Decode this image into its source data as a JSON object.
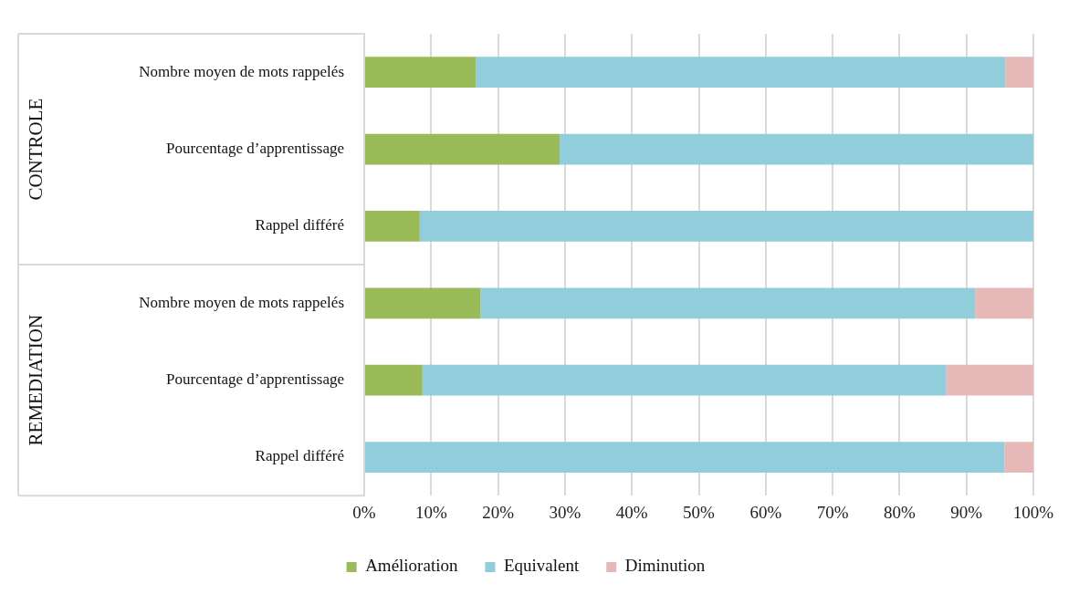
{
  "chart_data": {
    "type": "bar",
    "orientation": "horizontal",
    "stacked": true,
    "categories": [
      "Nombre moyen de mots rappelés",
      "Pourcentage d’apprentissage",
      "Rappel différé",
      "Nombre moyen de mots rappelés",
      "Pourcentage d’apprentissage",
      "Rappel différé"
    ],
    "series": [
      {
        "name": "Amélioration",
        "color": "#9bbb59",
        "values": [
          16.7,
          29.2,
          8.3,
          17.4,
          8.7,
          0
        ]
      },
      {
        "name": "Equivalent",
        "color": "#92cddc",
        "values": [
          79.1,
          70.8,
          91.7,
          73.9,
          78.3,
          95.7
        ]
      },
      {
        "name": "Diminution",
        "color": "#e6b9b8",
        "values": [
          4.2,
          0,
          0,
          8.7,
          13,
          4.3
        ]
      }
    ],
    "xlim": [
      0,
      100
    ],
    "xticks": [
      {
        "value": 0,
        "label": "0%"
      },
      {
        "value": 10,
        "label": "10%"
      },
      {
        "value": 20,
        "label": "20%"
      },
      {
        "value": 30,
        "label": "30%"
      },
      {
        "value": 40,
        "label": "40%"
      },
      {
        "value": 50,
        "label": "50%"
      },
      {
        "value": 60,
        "label": "60%"
      },
      {
        "value": 70,
        "label": "70%"
      },
      {
        "value": 80,
        "label": "80%"
      },
      {
        "value": 90,
        "label": "90%"
      },
      {
        "value": 100,
        "label": "100%"
      }
    ],
    "grid": "x",
    "legend": "bottom",
    "annotations": [
      "CONTROLE",
      "REMEDIATION"
    ]
  }
}
